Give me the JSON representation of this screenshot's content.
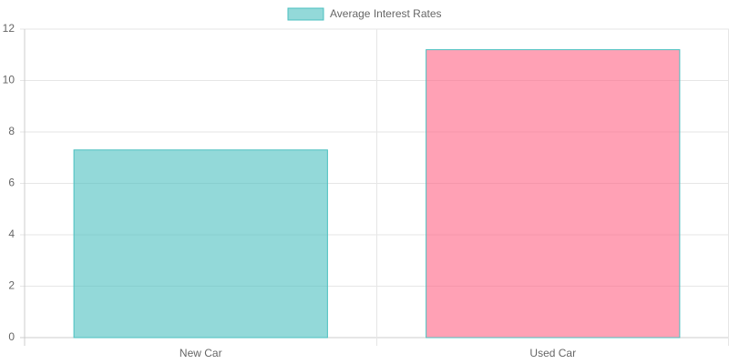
{
  "chart_data": {
    "type": "bar",
    "categories": [
      "New Car",
      "Used Car"
    ],
    "series": [
      {
        "name": "Average Interest Rates",
        "values": [
          7.3,
          11.2
        ],
        "colors": [
          "rgba(75,192,192,0.6)",
          "rgba(255,99,132,0.6)"
        ],
        "border_color": "rgb(75,192,192)"
      }
    ],
    "ylim": [
      0,
      12
    ],
    "yticks": [
      0,
      2,
      4,
      6,
      8,
      10,
      12
    ],
    "grid": true,
    "legend": "top"
  }
}
